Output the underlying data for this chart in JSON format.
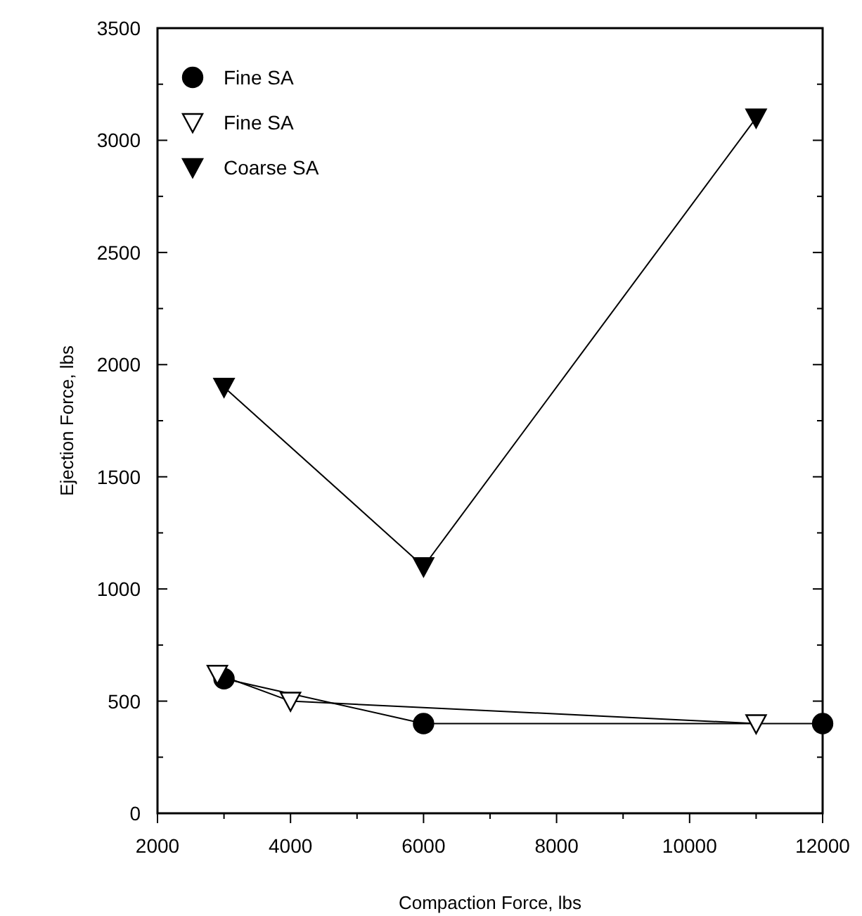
{
  "chart_data": {
    "type": "line",
    "xlabel": "Compaction Force, lbs",
    "ylabel": "Ejection Force, lbs",
    "xlim": [
      2000,
      12000
    ],
    "xticks": [
      2000,
      4000,
      6000,
      8000,
      10000,
      12000
    ],
    "ylim": [
      0,
      3500
    ],
    "yticks": [
      0,
      500,
      1000,
      1500,
      2000,
      2500,
      3000,
      3500
    ],
    "grid": false,
    "legend": "top left",
    "series": [
      {
        "name": "Fine SA",
        "color": "#000000",
        "marker": "circle",
        "x": [
          3000,
          6000,
          12000
        ],
        "values": [
          600,
          400,
          400
        ]
      },
      {
        "name": "Fine SA",
        "color": "#ffffff",
        "marker": "triangle",
        "x": [
          2900,
          4000,
          11000
        ],
        "values": [
          620,
          500,
          400
        ]
      },
      {
        "name": "Coarse SA",
        "color": "#000000",
        "marker": "triangle",
        "x": [
          3000,
          6000,
          11000
        ],
        "values": [
          1900,
          1100,
          3100
        ]
      }
    ]
  }
}
